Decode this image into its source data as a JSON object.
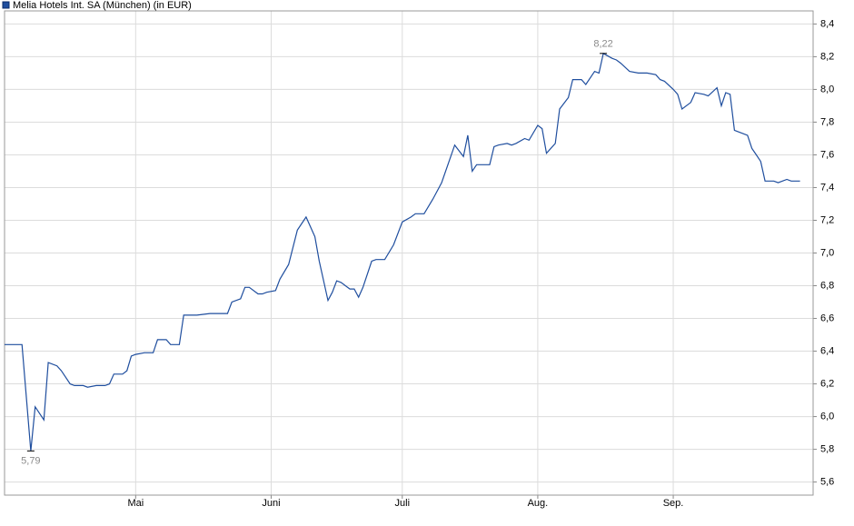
{
  "chart_data": {
    "type": "line",
    "title": "Melia Hotels Int. SA (München) (in EUR)",
    "x": [
      0,
      4,
      6,
      7,
      9,
      10,
      12,
      13,
      15,
      16,
      18,
      19,
      21,
      23,
      24,
      25,
      27,
      28,
      29,
      30,
      32,
      34,
      35,
      37,
      38,
      40,
      41,
      44,
      47,
      49,
      51,
      52,
      54,
      55,
      56,
      58,
      59,
      60,
      62,
      63,
      65,
      67,
      69,
      71,
      72,
      74,
      75,
      76,
      77,
      78,
      79,
      80,
      81,
      82,
      84,
      85,
      87,
      89,
      91,
      93,
      94,
      96,
      98,
      100,
      103,
      105,
      106,
      107,
      108,
      111,
      112,
      113,
      115,
      116,
      117,
      119,
      120,
      122,
      123,
      124,
      126,
      127,
      129,
      130,
      132,
      133,
      135,
      136,
      137,
      139,
      140,
      141,
      143,
      145,
      147,
      149,
      150,
      151,
      153,
      154,
      155,
      157,
      158,
      160,
      161,
      163,
      164,
      165,
      166,
      167,
      170,
      171,
      172,
      173,
      174,
      176,
      177,
      179,
      180,
      182
    ],
    "series": [
      {
        "name": "Melia Hotels Int. SA (München) (in EUR)",
        "color": "#1f4e9e",
        "values": [
          6.44,
          6.44,
          5.79,
          6.06,
          5.98,
          6.33,
          6.31,
          6.28,
          6.2,
          6.19,
          6.19,
          6.18,
          6.19,
          6.19,
          6.2,
          6.26,
          6.26,
          6.28,
          6.37,
          6.38,
          6.39,
          6.39,
          6.47,
          6.47,
          6.44,
          6.44,
          6.62,
          6.62,
          6.63,
          6.63,
          6.63,
          6.7,
          6.72,
          6.79,
          6.79,
          6.75,
          6.75,
          6.76,
          6.77,
          6.84,
          6.93,
          7.14,
          7.22,
          7.1,
          6.95,
          6.71,
          6.76,
          6.83,
          6.82,
          6.8,
          6.78,
          6.78,
          6.73,
          6.79,
          6.95,
          6.96,
          6.96,
          7.05,
          7.19,
          7.22,
          7.24,
          7.24,
          7.33,
          7.43,
          7.66,
          7.59,
          7.72,
          7.5,
          7.54,
          7.54,
          7.65,
          7.66,
          7.67,
          7.66,
          7.67,
          7.7,
          7.69,
          7.78,
          7.76,
          7.61,
          7.67,
          7.88,
          7.95,
          8.06,
          8.06,
          8.03,
          8.11,
          8.1,
          8.22,
          8.19,
          8.18,
          8.16,
          8.11,
          8.1,
          8.1,
          8.09,
          8.06,
          8.05,
          8,
          7.97,
          7.88,
          7.92,
          7.98,
          7.97,
          7.96,
          8.01,
          7.9,
          7.98,
          7.97,
          7.75,
          7.72,
          7.64,
          7.6,
          7.56,
          7.44,
          7.44,
          7.43,
          7.45,
          7.44,
          7.44
        ]
      }
    ],
    "xlim": [
      0,
      185
    ],
    "xticks": [
      {
        "value": 30,
        "label": "Mai"
      },
      {
        "value": 61,
        "label": "Juni"
      },
      {
        "value": 91,
        "label": "Juli"
      },
      {
        "value": 122,
        "label": "Aug."
      },
      {
        "value": 153,
        "label": "Sep."
      }
    ],
    "ylim": [
      5.52,
      8.48
    ],
    "yticks": [
      {
        "value": 5.6,
        "label": "5,6"
      },
      {
        "value": 5.8,
        "label": "5,8"
      },
      {
        "value": 6.0,
        "label": "6,0"
      },
      {
        "value": 6.2,
        "label": "6,2"
      },
      {
        "value": 6.4,
        "label": "6,4"
      },
      {
        "value": 6.6,
        "label": "6,6"
      },
      {
        "value": 6.8,
        "label": "6,8"
      },
      {
        "value": 7.0,
        "label": "7,0"
      },
      {
        "value": 7.2,
        "label": "7,2"
      },
      {
        "value": 7.4,
        "label": "7,4"
      },
      {
        "value": 7.6,
        "label": "7,6"
      },
      {
        "value": 7.8,
        "label": "7,8"
      },
      {
        "value": 8.0,
        "label": "8,0"
      },
      {
        "value": 8.2,
        "label": "8,2"
      },
      {
        "value": 8.4,
        "label": "8,4"
      }
    ],
    "grid": true,
    "annotations": [
      {
        "label": "5,79",
        "x": 6,
        "value": 5.79,
        "position": "below"
      },
      {
        "label": "8,22",
        "x": 137,
        "value": 8.22,
        "position": "above"
      }
    ]
  }
}
